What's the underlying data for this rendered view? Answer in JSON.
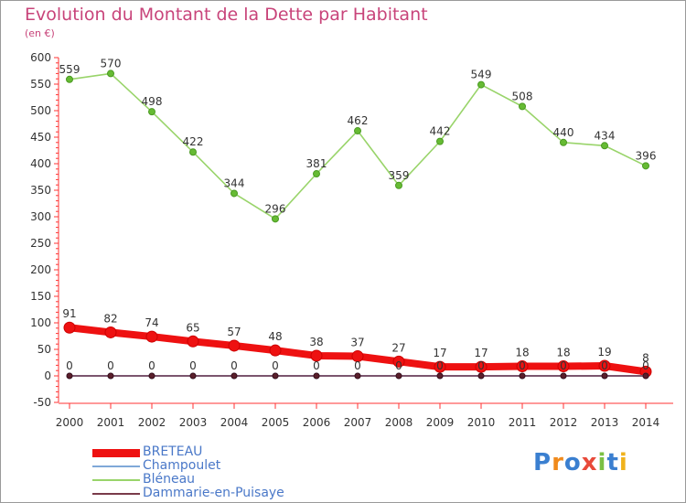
{
  "chart_data": {
    "type": "line",
    "title": "Evolution du Montant de la Dette par Habitant",
    "subtitle": "(en €)",
    "x": [
      "2000",
      "2001",
      "2002",
      "2003",
      "2004",
      "2005",
      "2006",
      "2007",
      "2008",
      "2009",
      "2010",
      "2011",
      "2012",
      "2013",
      "2014"
    ],
    "ylim": [
      -50,
      600
    ],
    "yticks": [
      -50,
      0,
      50,
      100,
      150,
      200,
      250,
      300,
      350,
      400,
      450,
      500,
      550,
      600
    ],
    "grid": false,
    "legend_position": "bottom-left",
    "series": [
      {
        "name": "BRETEAU",
        "color": "#ee1111",
        "values": [
          91,
          82,
          74,
          65,
          57,
          48,
          38,
          37,
          27,
          17,
          17,
          18,
          18,
          19,
          8
        ]
      },
      {
        "name": "Champoulet",
        "color": "#7fa8d8",
        "values": [
          0,
          0,
          0,
          0,
          0,
          0,
          0,
          0,
          0,
          0,
          0,
          0,
          0,
          0,
          0
        ]
      },
      {
        "name": "Bléneau",
        "color": "#99d46a",
        "values": [
          559,
          570,
          498,
          422,
          344,
          296,
          381,
          462,
          359,
          442,
          549,
          508,
          440,
          434,
          396
        ]
      },
      {
        "name": "Dammarie-en-Puisaye",
        "color": "#7a3b4a",
        "values": [
          0,
          0,
          0,
          0,
          0,
          0,
          0,
          0,
          0,
          0,
          0,
          0,
          0,
          0,
          0
        ]
      }
    ]
  },
  "brand": {
    "letters": [
      "P",
      "r",
      "o",
      "x",
      "i",
      "t",
      "i"
    ],
    "colors": [
      "#3a7fd0",
      "#f08a1c",
      "#3a7fd0",
      "#e84a3a",
      "#7bc043",
      "#3a7fd0",
      "#f0b21c"
    ]
  }
}
